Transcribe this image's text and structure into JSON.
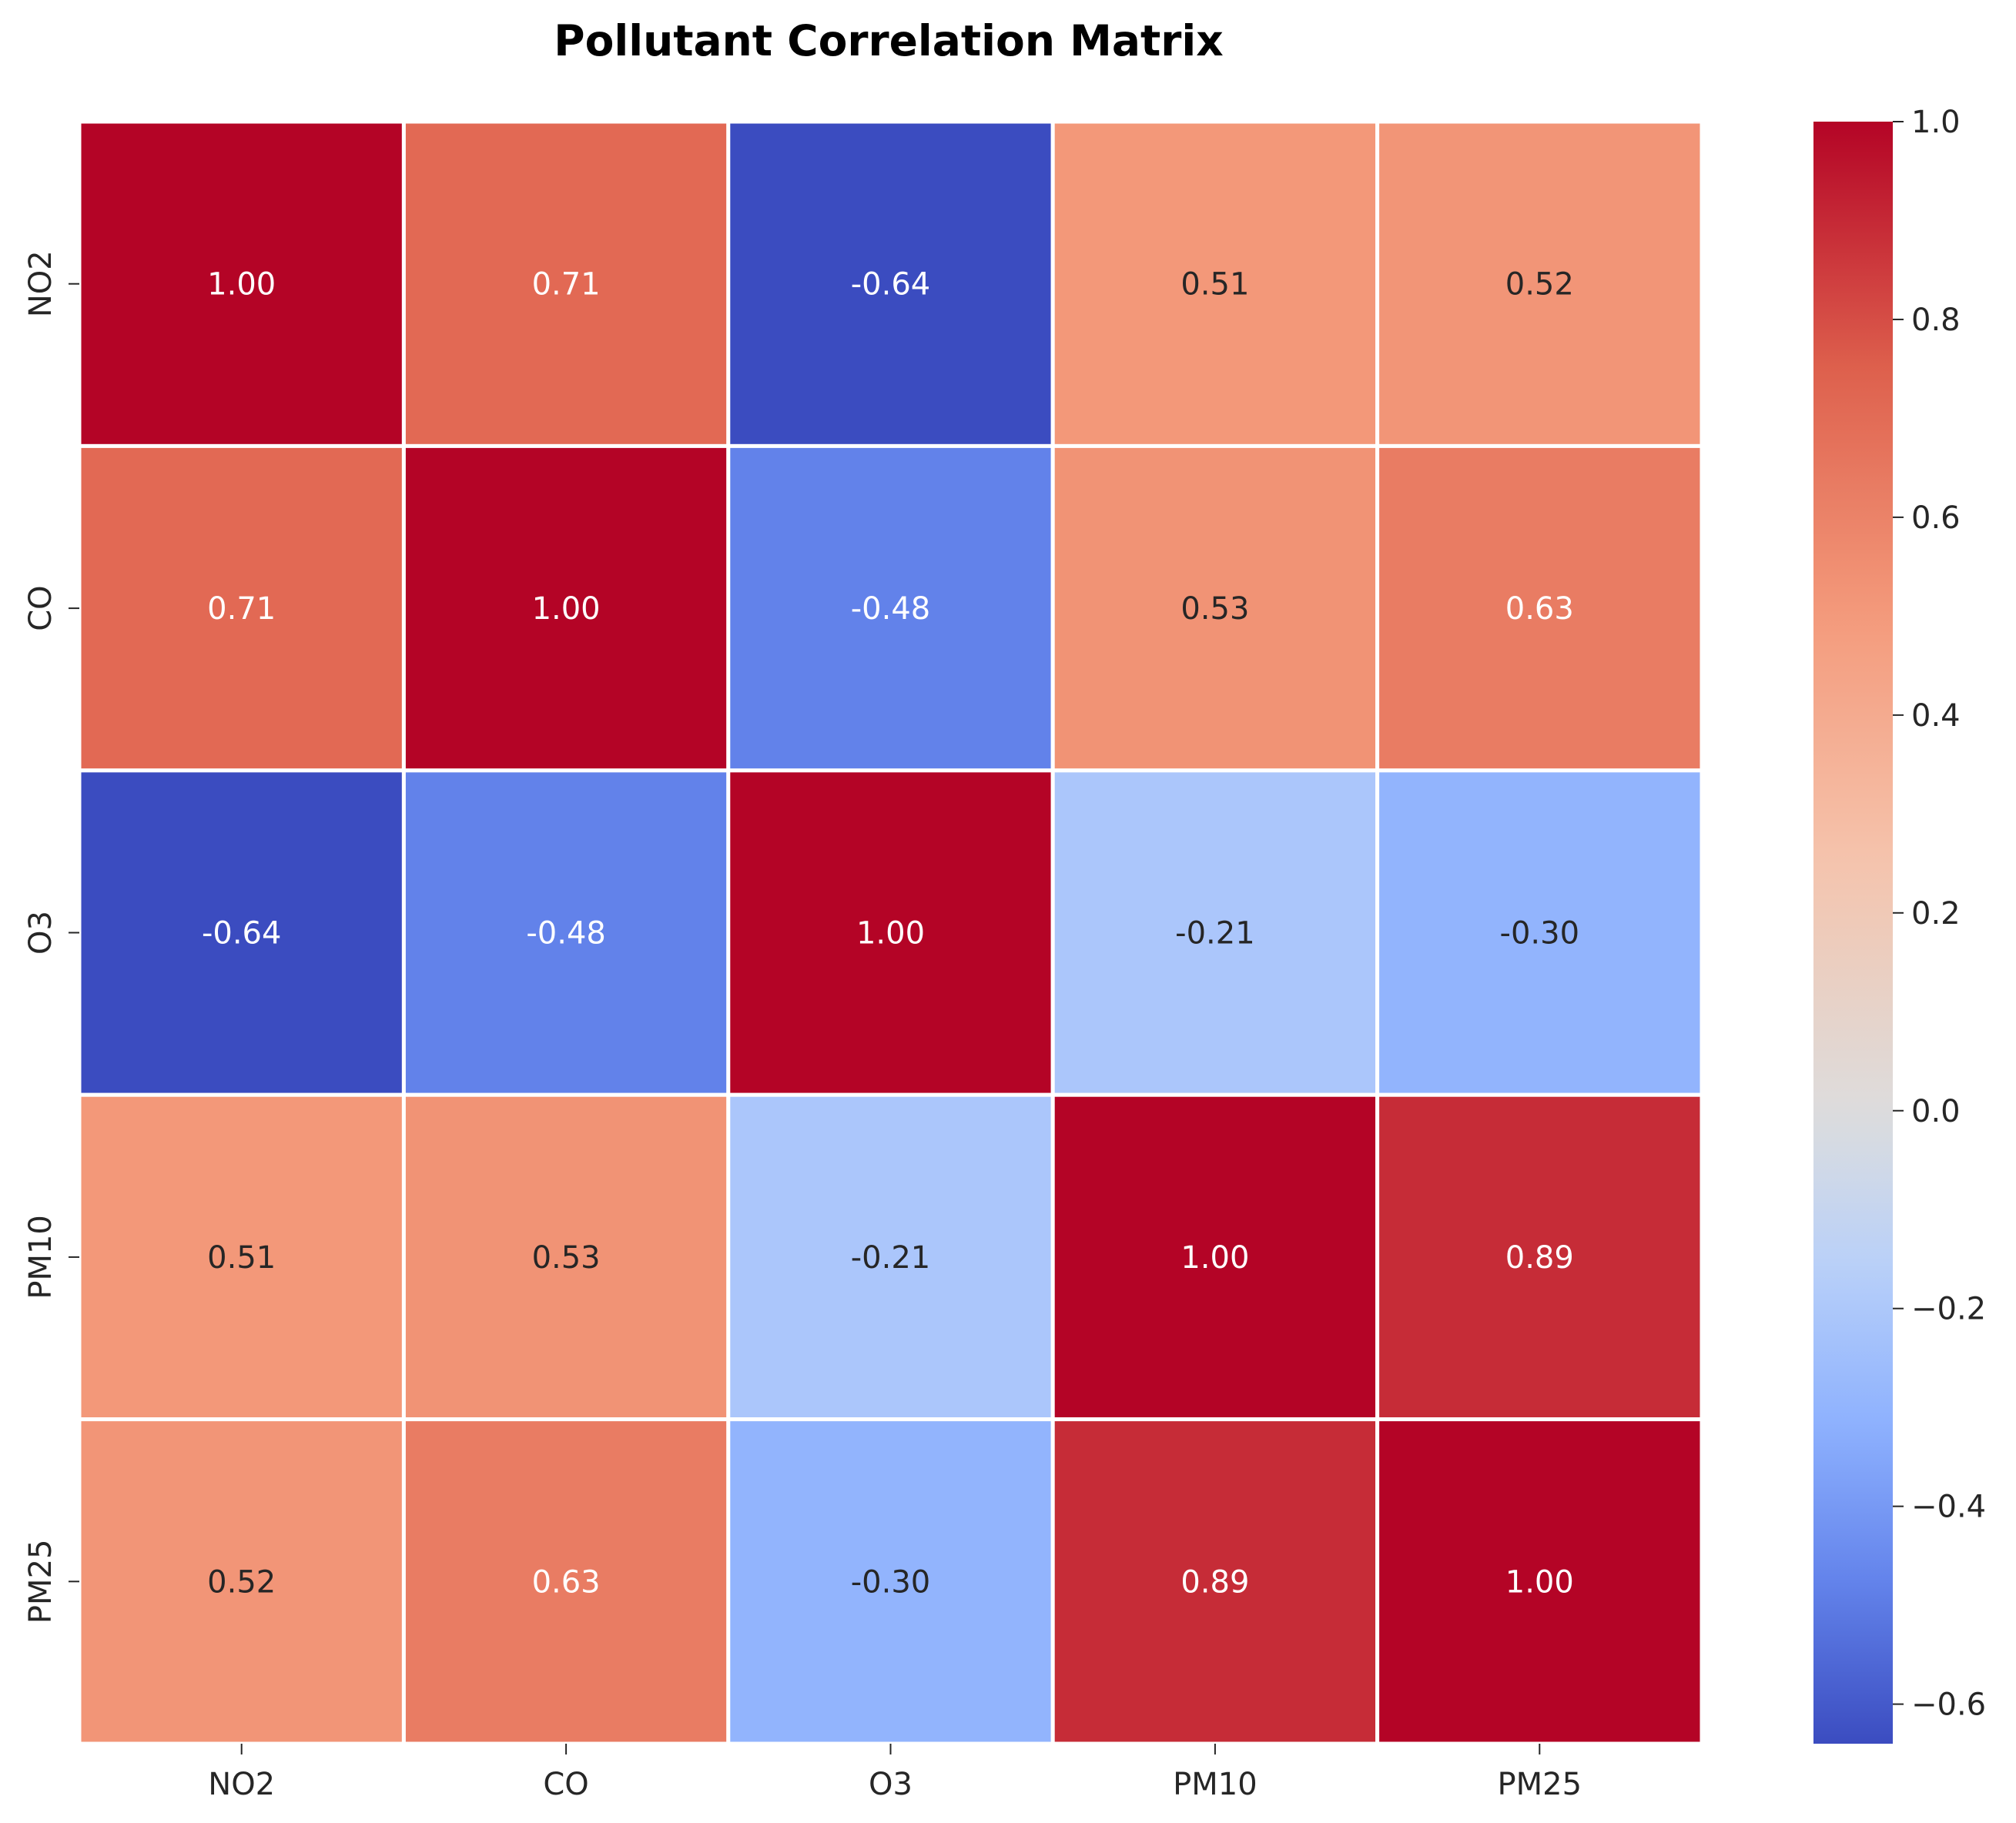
{
  "chart_data": {
    "type": "heatmap",
    "title": "Pollutant Correlation Matrix",
    "xlabel": "",
    "ylabel": "",
    "x_categories": [
      "NO2",
      "CO",
      "O3",
      "PM10",
      "PM25"
    ],
    "y_categories": [
      "NO2",
      "CO",
      "O3",
      "PM10",
      "PM25"
    ],
    "values": [
      [
        1.0,
        0.71,
        -0.64,
        0.51,
        0.52
      ],
      [
        0.71,
        1.0,
        -0.48,
        0.53,
        0.63
      ],
      [
        -0.64,
        -0.48,
        1.0,
        -0.21,
        -0.3
      ],
      [
        0.51,
        0.53,
        -0.21,
        1.0,
        0.89
      ],
      [
        0.52,
        0.63,
        -0.3,
        0.89,
        1.0
      ]
    ],
    "value_format": "2 decimals",
    "colormap": "coolwarm",
    "vmin": -0.64,
    "vmax": 1.0,
    "center": 0.0,
    "colorbar": {
      "position": "right",
      "ticks": [
        1.0,
        0.8,
        0.6,
        0.4,
        0.2,
        0.0,
        -0.2,
        -0.4,
        -0.6
      ],
      "tick_labels": [
        "1.0",
        "0.8",
        "0.6",
        "0.4",
        "0.2",
        "0.0",
        "−0.2",
        "−0.4",
        "−0.6"
      ]
    },
    "grid": false,
    "cell_separator_color": "#ffffff"
  }
}
